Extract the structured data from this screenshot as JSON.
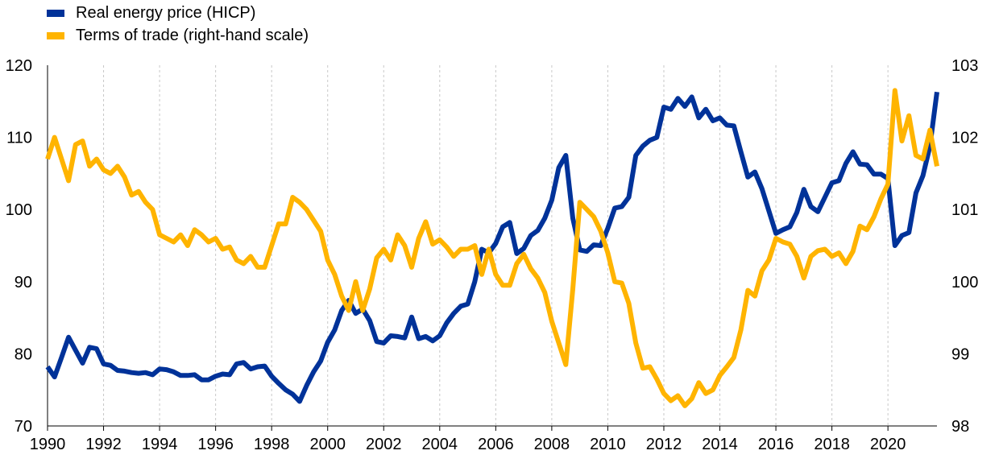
{
  "legend": [
    {
      "label": "Real energy price (HICP)",
      "color": "#003299"
    },
    {
      "label": "Terms of trade (right-hand scale)",
      "color": "#FFB400"
    }
  ],
  "chart_data": {
    "type": "line",
    "title": "",
    "xlabel": "",
    "ylabel": "",
    "x_range": [
      1990,
      2021.75
    ],
    "y_left": {
      "lim": [
        70,
        120
      ],
      "ticks": [
        70,
        80,
        90,
        100,
        110,
        120
      ]
    },
    "y_right": {
      "lim": [
        98,
        103
      ],
      "ticks": [
        98,
        99,
        100,
        101,
        102,
        103
      ]
    },
    "x_ticks": [
      1990,
      1992,
      1994,
      1996,
      1998,
      2000,
      2002,
      2004,
      2006,
      2008,
      2010,
      2012,
      2014,
      2016,
      2018,
      2020
    ],
    "grid": "vertical",
    "legend_position": "top-left",
    "series": [
      {
        "name": "Real energy price (HICP)",
        "axis": "left",
        "color": "#003299",
        "x": [
          1990.0,
          1990.25,
          1990.5,
          1990.75,
          1991.0,
          1991.25,
          1991.5,
          1991.75,
          1992.0,
          1992.25,
          1992.5,
          1992.75,
          1993.0,
          1993.25,
          1993.5,
          1993.75,
          1994.0,
          1994.25,
          1994.5,
          1994.75,
          1995.0,
          1995.25,
          1995.5,
          1995.75,
          1996.0,
          1996.25,
          1996.5,
          1996.75,
          1997.0,
          1997.25,
          1997.5,
          1997.75,
          1998.0,
          1998.25,
          1998.5,
          1998.75,
          1999.0,
          1999.25,
          1999.5,
          1999.75,
          2000.0,
          2000.25,
          2000.5,
          2000.75,
          2001.0,
          2001.25,
          2001.5,
          2001.75,
          2002.0,
          2002.25,
          2002.5,
          2002.75,
          2003.0,
          2003.25,
          2003.5,
          2003.75,
          2004.0,
          2004.25,
          2004.5,
          2004.75,
          2005.0,
          2005.25,
          2005.5,
          2005.75,
          2006.0,
          2006.25,
          2006.5,
          2006.75,
          2007.0,
          2007.25,
          2007.5,
          2007.75,
          2008.0,
          2008.25,
          2008.5,
          2008.75,
          2009.0,
          2009.25,
          2009.5,
          2009.75,
          2010.0,
          2010.25,
          2010.5,
          2010.75,
          2011.0,
          2011.25,
          2011.5,
          2011.75,
          2012.0,
          2012.25,
          2012.5,
          2012.75,
          2013.0,
          2013.25,
          2013.5,
          2013.75,
          2014.0,
          2014.25,
          2014.5,
          2014.75,
          2015.0,
          2015.25,
          2015.5,
          2015.75,
          2016.0,
          2016.25,
          2016.5,
          2016.75,
          2017.0,
          2017.25,
          2017.5,
          2017.75,
          2018.0,
          2018.25,
          2018.5,
          2018.75,
          2019.0,
          2019.25,
          2019.5,
          2019.75,
          2020.0,
          2020.25,
          2020.5,
          2020.75,
          2021.0,
          2021.25,
          2021.5,
          2021.75
        ],
        "values": [
          78.2,
          76.8,
          79.5,
          82.3,
          80.5,
          78.7,
          80.9,
          80.7,
          78.6,
          78.4,
          77.7,
          77.6,
          77.4,
          77.3,
          77.4,
          77.1,
          77.9,
          77.8,
          77.5,
          77.0,
          77.0,
          77.1,
          76.4,
          76.4,
          76.9,
          77.2,
          77.1,
          78.6,
          78.8,
          77.9,
          78.2,
          78.3,
          76.9,
          75.9,
          75.0,
          74.4,
          73.4,
          75.6,
          77.5,
          79.0,
          81.6,
          83.3,
          86.0,
          87.4,
          85.6,
          86.2,
          84.6,
          81.7,
          81.5,
          82.5,
          82.4,
          82.2,
          85.1,
          82.1,
          82.4,
          81.8,
          82.5,
          84.3,
          85.6,
          86.6,
          86.9,
          90.0,
          94.5,
          94.0,
          95.3,
          97.6,
          98.2,
          93.9,
          94.6,
          96.4,
          97.1,
          98.8,
          101.3,
          105.8,
          107.5,
          98.8,
          94.4,
          94.2,
          95.1,
          95.0,
          97.4,
          100.2,
          100.4,
          101.7,
          107.5,
          108.8,
          109.6,
          110.0,
          114.2,
          113.9,
          115.4,
          114.3,
          115.6,
          112.7,
          113.9,
          112.3,
          112.7,
          111.7,
          111.6,
          108.0,
          104.5,
          105.2,
          102.9,
          99.8,
          96.7,
          97.2,
          97.6,
          99.6,
          102.8,
          100.4,
          99.7,
          101.7,
          103.7,
          104.0,
          106.4,
          108.0,
          106.3,
          106.2,
          104.9,
          104.9,
          104.3,
          95.0,
          96.4,
          96.8,
          102.3,
          104.7,
          108.8,
          116.3
        ]
      },
      {
        "name": "Terms of trade (right-hand scale)",
        "axis": "right",
        "color": "#FFB400",
        "x": [
          1990.0,
          1990.25,
          1990.5,
          1990.75,
          1991.0,
          1991.25,
          1991.5,
          1991.75,
          1992.0,
          1992.25,
          1992.5,
          1992.75,
          1993.0,
          1993.25,
          1993.5,
          1993.75,
          1994.0,
          1994.25,
          1994.5,
          1994.75,
          1995.0,
          1995.25,
          1995.5,
          1995.75,
          1996.0,
          1996.25,
          1996.5,
          1996.75,
          1997.0,
          1997.25,
          1997.5,
          1997.75,
          1998.0,
          1998.25,
          1998.5,
          1998.75,
          1999.0,
          1999.25,
          1999.5,
          1999.75,
          2000.0,
          2000.25,
          2000.5,
          2000.75,
          2001.0,
          2001.25,
          2001.5,
          2001.75,
          2002.0,
          2002.25,
          2002.5,
          2002.75,
          2003.0,
          2003.25,
          2003.5,
          2003.75,
          2004.0,
          2004.25,
          2004.5,
          2004.75,
          2005.0,
          2005.25,
          2005.5,
          2005.75,
          2006.0,
          2006.25,
          2006.5,
          2006.75,
          2007.0,
          2007.25,
          2007.5,
          2007.75,
          2008.0,
          2008.25,
          2008.5,
          2008.75,
          2009.0,
          2009.25,
          2009.5,
          2009.75,
          2010.0,
          2010.25,
          2010.5,
          2010.75,
          2011.0,
          2011.25,
          2011.5,
          2011.75,
          2012.0,
          2012.25,
          2012.5,
          2012.75,
          2013.0,
          2013.25,
          2013.5,
          2013.75,
          2014.0,
          2014.25,
          2014.5,
          2014.75,
          2015.0,
          2015.25,
          2015.5,
          2015.75,
          2016.0,
          2016.25,
          2016.5,
          2016.75,
          2017.0,
          2017.25,
          2017.5,
          2017.75,
          2018.0,
          2018.25,
          2018.5,
          2018.75,
          2019.0,
          2019.25,
          2019.5,
          2019.75,
          2020.0,
          2020.25,
          2020.5,
          2020.75,
          2021.0,
          2021.25,
          2021.5,
          2021.75
        ],
        "values": [
          101.7,
          102.0,
          101.7,
          101.4,
          101.9,
          101.95,
          101.6,
          101.7,
          101.55,
          101.5,
          101.6,
          101.45,
          101.2,
          101.25,
          101.1,
          101.0,
          100.65,
          100.6,
          100.55,
          100.65,
          100.5,
          100.72,
          100.65,
          100.55,
          100.6,
          100.45,
          100.48,
          100.3,
          100.25,
          100.35,
          100.2,
          100.2,
          100.5,
          100.8,
          100.8,
          101.17,
          101.1,
          101.0,
          100.85,
          100.7,
          100.3,
          100.1,
          99.8,
          99.6,
          100.0,
          99.6,
          99.9,
          100.33,
          100.45,
          100.3,
          100.65,
          100.5,
          100.2,
          100.6,
          100.83,
          100.52,
          100.58,
          100.48,
          100.35,
          100.45,
          100.45,
          100.5,
          100.1,
          100.45,
          100.1,
          99.95,
          99.95,
          100.25,
          100.38,
          100.18,
          100.05,
          99.85,
          99.45,
          99.15,
          98.85,
          99.9,
          101.1,
          101.0,
          100.9,
          100.7,
          100.4,
          100.0,
          99.98,
          99.7,
          99.15,
          98.8,
          98.82,
          98.65,
          98.45,
          98.35,
          98.42,
          98.28,
          98.38,
          98.6,
          98.45,
          98.5,
          98.7,
          98.82,
          98.95,
          99.33,
          99.88,
          99.8,
          100.15,
          100.3,
          100.6,
          100.55,
          100.52,
          100.35,
          100.05,
          100.35,
          100.43,
          100.45,
          100.35,
          100.4,
          100.25,
          100.42,
          100.77,
          100.72,
          100.9,
          101.15,
          101.35,
          102.65,
          101.95,
          102.3,
          101.75,
          101.7,
          102.1,
          101.6
        ]
      }
    ]
  }
}
